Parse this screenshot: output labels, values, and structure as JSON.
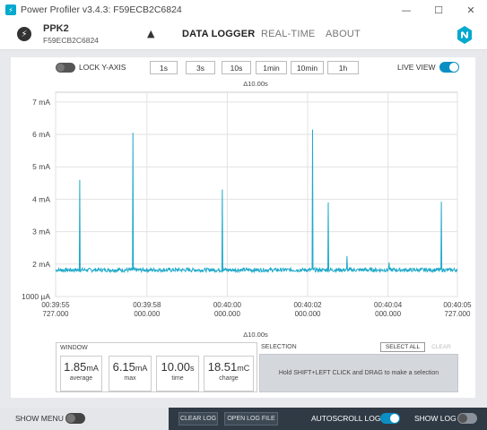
{
  "window": {
    "title": "Power Profiler v3.4.3: F59ECB2C6824",
    "controls": {
      "minimize": "—",
      "maximize": "☐",
      "close": "✕"
    }
  },
  "header": {
    "device_name": "PPK2",
    "device_serial": "F59ECB2C6824",
    "eject_icon": "▲",
    "tabs": [
      {
        "label": "DATA LOGGER",
        "active": true
      },
      {
        "label": "REAL-TIME",
        "active": false
      },
      {
        "label": "ABOUT",
        "active": false
      }
    ]
  },
  "toolbar": {
    "lock_y_axis_label": "LOCK Y-AXIS",
    "lock_y_axis_on": false,
    "window_buttons": [
      "1s",
      "3s",
      "10s",
      "1min",
      "10min",
      "1h"
    ],
    "live_view_label": "LIVE VIEW",
    "live_view_on": true
  },
  "chart_data": {
    "type": "line",
    "span_label_top": "Δ10.00s",
    "span_label_bottom": "Δ10.00s",
    "y_tick_labels": [
      "7 mA",
      "6 mA",
      "5 mA",
      "4 mA",
      "3 mA",
      "2 mA",
      "1000 µA"
    ],
    "y_ticks": [
      7,
      6,
      5,
      4,
      3,
      2,
      1
    ],
    "ylim": [
      1,
      7.3
    ],
    "x_tick_labels": [
      [
        "00:39:55",
        "727.000"
      ],
      [
        "00:39:58",
        "000.000"
      ],
      [
        "00:40:00",
        "000.000"
      ],
      [
        "00:40:02",
        "000.000"
      ],
      [
        "00:40:04",
        "000.000"
      ],
      [
        "00:40:05",
        "727.000"
      ]
    ],
    "x_ticks": [
      0,
      2.273,
      4.273,
      6.273,
      8.273,
      10
    ],
    "xlim": [
      0,
      10
    ],
    "baseline_mA": 1.82,
    "noise_mA": 0.06,
    "spikes": [
      {
        "x": 0.6,
        "peak": 4.6
      },
      {
        "x": 1.92,
        "peak": 6.05
      },
      {
        "x": 4.15,
        "peak": 4.3
      },
      {
        "x": 6.4,
        "peak": 6.15
      },
      {
        "x": 6.78,
        "peak": 3.9
      },
      {
        "x": 7.25,
        "peak": 2.25
      },
      {
        "x": 8.3,
        "peak": 2.05
      },
      {
        "x": 9.6,
        "peak": 3.92
      }
    ],
    "color": "#1fa9c9",
    "grid": true
  },
  "stats": {
    "title": "WINDOW",
    "items": [
      {
        "value": "1.85",
        "unit": "mA",
        "label": "average"
      },
      {
        "value": "6.15",
        "unit": "mA",
        "label": "max"
      },
      {
        "value": "10.00",
        "unit": "s",
        "label": "time"
      },
      {
        "value": "18.51",
        "unit": "mC",
        "label": "charge"
      }
    ]
  },
  "selection": {
    "title": "SELECTION",
    "select_all_label": "SELECT ALL",
    "clear_label": "CLEAR",
    "hint": "Hold SHIFT+LEFT CLICK and DRAG to make a selection"
  },
  "footer": {
    "show_menu_label": "SHOW MENU",
    "show_menu_on": false,
    "clear_log_label": "CLEAR LOG",
    "open_log_file_label": "OPEN LOG FILE",
    "autoscroll_label": "AUTOSCROLL LOG",
    "autoscroll_on": true,
    "show_log_label": "SHOW LOG",
    "show_log_on": false
  },
  "colors": {
    "accent": "#0a8fc4",
    "trace": "#1fa9c9",
    "footer_dark": "#2f3a45"
  }
}
